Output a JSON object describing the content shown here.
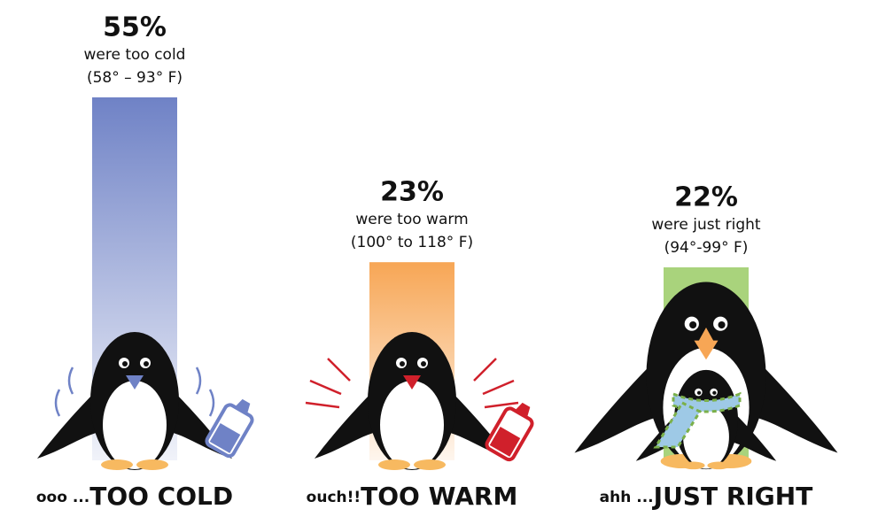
{
  "chart_data": {
    "type": "bar",
    "categories": [
      "TOO COLD",
      "TOO WARM",
      "JUST RIGHT"
    ],
    "prefixes": [
      "ooo ...",
      "ouch!!",
      "ahh ..."
    ],
    "values": [
      55,
      23,
      22
    ],
    "value_labels": [
      "55%",
      "23%",
      "22%"
    ],
    "descriptions": [
      "were too cold",
      "were too warm",
      "were just right"
    ],
    "ranges": [
      "(58° – 93° F)",
      "(100° to 118° F)",
      "(94°-99° F)"
    ],
    "colors": [
      "#6f82c6",
      "#f7a655",
      "#a9d37c"
    ],
    "beak_colors": [
      "#6f82c6",
      "#d0202b",
      "#f7a655"
    ]
  }
}
